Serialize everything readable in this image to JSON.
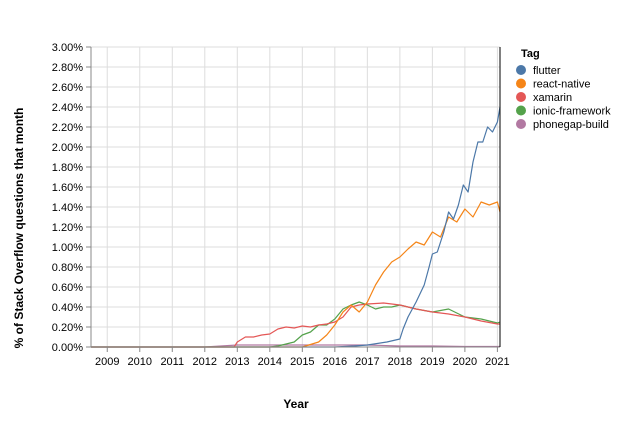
{
  "chart_data": {
    "type": "line",
    "xlabel": "Year",
    "ylabel": "% of Stack Overflow questions that month",
    "x_ticks": [
      "2009",
      "2010",
      "2011",
      "2012",
      "2013",
      "2014",
      "2015",
      "2016",
      "2017",
      "2018",
      "2019",
      "2020",
      "2021"
    ],
    "xlim": [
      2008.5,
      2021.08
    ],
    "y_ticks": [
      "0.00%",
      "0.20%",
      "0.40%",
      "0.60%",
      "0.80%",
      "1.00%",
      "1.20%",
      "1.40%",
      "1.60%",
      "1.80%",
      "2.00%",
      "2.20%",
      "2.40%",
      "2.60%",
      "2.80%",
      "3.00%"
    ],
    "ylim": [
      0,
      3.0
    ],
    "grid": true,
    "legend": {
      "title": "Tag",
      "placement": "right"
    },
    "series": [
      {
        "name": "flutter",
        "color": "#4c78a8",
        "points": [
          [
            2008.5,
            0
          ],
          [
            2016.0,
            0
          ],
          [
            2016.6,
            0.01
          ],
          [
            2017.0,
            0.02
          ],
          [
            2017.6,
            0.05
          ],
          [
            2018.0,
            0.08
          ],
          [
            2018.1,
            0.18
          ],
          [
            2018.25,
            0.3
          ],
          [
            2018.5,
            0.45
          ],
          [
            2018.75,
            0.62
          ],
          [
            2018.9,
            0.8
          ],
          [
            2019.0,
            0.93
          ],
          [
            2019.15,
            0.95
          ],
          [
            2019.35,
            1.15
          ],
          [
            2019.5,
            1.35
          ],
          [
            2019.65,
            1.28
          ],
          [
            2019.8,
            1.42
          ],
          [
            2019.95,
            1.62
          ],
          [
            2020.1,
            1.55
          ],
          [
            2020.25,
            1.85
          ],
          [
            2020.4,
            2.05
          ],
          [
            2020.55,
            2.05
          ],
          [
            2020.7,
            2.2
          ],
          [
            2020.85,
            2.15
          ],
          [
            2021.0,
            2.25
          ],
          [
            2021.08,
            2.4
          ]
        ]
      },
      {
        "name": "react-native",
        "color": "#f58518",
        "points": [
          [
            2008.5,
            0
          ],
          [
            2015.0,
            0
          ],
          [
            2015.2,
            0.02
          ],
          [
            2015.5,
            0.05
          ],
          [
            2015.75,
            0.12
          ],
          [
            2016.0,
            0.22
          ],
          [
            2016.25,
            0.35
          ],
          [
            2016.5,
            0.42
          ],
          [
            2016.75,
            0.35
          ],
          [
            2017.0,
            0.45
          ],
          [
            2017.25,
            0.62
          ],
          [
            2017.5,
            0.75
          ],
          [
            2017.75,
            0.85
          ],
          [
            2018.0,
            0.9
          ],
          [
            2018.25,
            0.98
          ],
          [
            2018.5,
            1.05
          ],
          [
            2018.75,
            1.02
          ],
          [
            2019.0,
            1.15
          ],
          [
            2019.25,
            1.1
          ],
          [
            2019.5,
            1.3
          ],
          [
            2019.75,
            1.25
          ],
          [
            2020.0,
            1.38
          ],
          [
            2020.25,
            1.3
          ],
          [
            2020.5,
            1.45
          ],
          [
            2020.75,
            1.42
          ],
          [
            2021.0,
            1.45
          ],
          [
            2021.08,
            1.35
          ]
        ]
      },
      {
        "name": "xamarin",
        "color": "#e45756",
        "points": [
          [
            2008.5,
            0
          ],
          [
            2012.9,
            0
          ],
          [
            2013.0,
            0.05
          ],
          [
            2013.25,
            0.1
          ],
          [
            2013.5,
            0.1
          ],
          [
            2013.75,
            0.12
          ],
          [
            2014.0,
            0.13
          ],
          [
            2014.25,
            0.18
          ],
          [
            2014.5,
            0.2
          ],
          [
            2014.75,
            0.19
          ],
          [
            2015.0,
            0.21
          ],
          [
            2015.25,
            0.2
          ],
          [
            2015.5,
            0.22
          ],
          [
            2015.75,
            0.23
          ],
          [
            2016.0,
            0.25
          ],
          [
            2016.25,
            0.3
          ],
          [
            2016.5,
            0.4
          ],
          [
            2016.75,
            0.42
          ],
          [
            2017.0,
            0.43
          ],
          [
            2017.5,
            0.44
          ],
          [
            2018.0,
            0.42
          ],
          [
            2018.5,
            0.38
          ],
          [
            2019.0,
            0.35
          ],
          [
            2019.5,
            0.33
          ],
          [
            2020.0,
            0.3
          ],
          [
            2020.5,
            0.26
          ],
          [
            2021.0,
            0.23
          ],
          [
            2021.08,
            0.23
          ]
        ]
      },
      {
        "name": "ionic-framework",
        "color": "#54a24b",
        "points": [
          [
            2008.5,
            0
          ],
          [
            2014.0,
            0
          ],
          [
            2014.25,
            0.01
          ],
          [
            2014.5,
            0.03
          ],
          [
            2014.75,
            0.05
          ],
          [
            2015.0,
            0.12
          ],
          [
            2015.25,
            0.15
          ],
          [
            2015.5,
            0.22
          ],
          [
            2015.75,
            0.22
          ],
          [
            2016.0,
            0.28
          ],
          [
            2016.25,
            0.38
          ],
          [
            2016.5,
            0.42
          ],
          [
            2016.75,
            0.45
          ],
          [
            2017.0,
            0.42
          ],
          [
            2017.25,
            0.38
          ],
          [
            2017.5,
            0.4
          ],
          [
            2017.75,
            0.4
          ],
          [
            2018.0,
            0.42
          ],
          [
            2018.5,
            0.38
          ],
          [
            2019.0,
            0.35
          ],
          [
            2019.5,
            0.38
          ],
          [
            2020.0,
            0.3
          ],
          [
            2020.5,
            0.28
          ],
          [
            2021.0,
            0.24
          ],
          [
            2021.08,
            0.25
          ]
        ]
      },
      {
        "name": "phonegap-build",
        "color": "#b279a2",
        "points": [
          [
            2008.5,
            0
          ],
          [
            2012.0,
            0
          ],
          [
            2012.5,
            0.01
          ],
          [
            2013.0,
            0.02
          ],
          [
            2014.0,
            0.02
          ],
          [
            2015.0,
            0.02
          ],
          [
            2016.0,
            0.02
          ],
          [
            2017.0,
            0.02
          ],
          [
            2018.0,
            0.01
          ],
          [
            2019.0,
            0.01
          ],
          [
            2020.0,
            0.005
          ],
          [
            2021.08,
            0.005
          ]
        ]
      }
    ]
  }
}
